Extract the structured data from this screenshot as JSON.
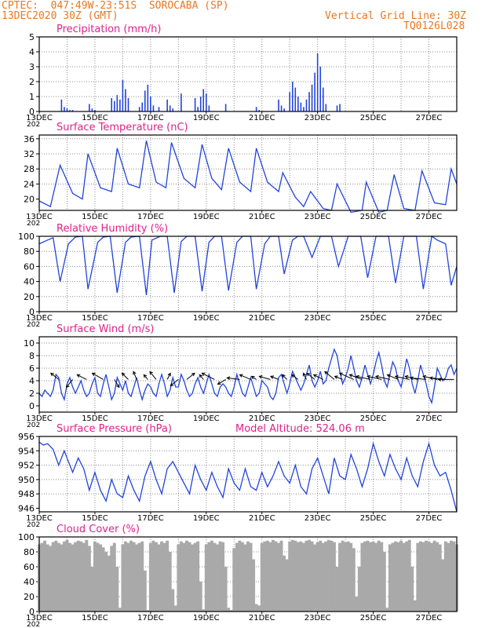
{
  "header": {
    "line1": "CPTEC:  047:49W-23:51S  SOROCABA (SP)",
    "line2": "13DEC2020 30Z (GMT)",
    "grid_note": "Vertical Grid Line: 30Z",
    "code": "TQ0126L028"
  },
  "colors": {
    "header": "#e87722",
    "title": "#e0218a",
    "line": "#2244dd",
    "cloud": "#a9a9a9",
    "grid": "#8c8c8c"
  },
  "time_axis": {
    "start_day": 13,
    "end_day": 28,
    "labeled_days": [
      13,
      15,
      17,
      19,
      21,
      23,
      25,
      27
    ],
    "labels": [
      "13DEC",
      "15DEC",
      "17DEC",
      "19DEC",
      "21DEC",
      "23DEC",
      "25DEC",
      "27DEC"
    ],
    "year_stub": "202"
  },
  "chart_data": [
    {
      "id": "precip",
      "type": "bar",
      "title": "Precipitation (mm/h)",
      "ylim": [
        0,
        5
      ],
      "yticks": [
        0,
        1,
        2,
        3,
        4,
        5
      ],
      "x_units": "day of December",
      "x": [
        13.8,
        13.9,
        14.0,
        14.1,
        14.2,
        14.8,
        14.9,
        15.0,
        15.6,
        15.7,
        15.8,
        15.9,
        16.0,
        16.1,
        16.2,
        16.6,
        16.7,
        16.8,
        16.9,
        17.0,
        17.1,
        17.3,
        17.6,
        17.7,
        17.8,
        18.1,
        18.6,
        18.7,
        18.8,
        18.9,
        19.0,
        19.1,
        19.7,
        20.8,
        20.9,
        21.6,
        21.7,
        21.8,
        22.0,
        22.1,
        22.2,
        22.3,
        22.4,
        22.5,
        22.6,
        22.7,
        22.8,
        22.9,
        23.0,
        23.1,
        23.2,
        23.3,
        23.7,
        23.8
      ],
      "values": [
        0.8,
        0.3,
        0.2,
        0.1,
        0.1,
        0.5,
        0.2,
        0.1,
        0.9,
        0.7,
        1.1,
        0.8,
        2.1,
        1.5,
        0.9,
        0.3,
        0.6,
        1.4,
        1.8,
        1.0,
        0.4,
        0.3,
        0.8,
        0.4,
        0.2,
        1.2,
        0.9,
        0.3,
        1.0,
        1.5,
        1.2,
        0.4,
        0.5,
        0.3,
        0.1,
        0.8,
        0.4,
        0.2,
        1.3,
        2.0,
        1.6,
        1.0,
        0.6,
        0.3,
        0.8,
        1.3,
        1.8,
        2.6,
        3.9,
        3.0,
        1.6,
        0.5,
        0.4,
        0.5
      ]
    },
    {
      "id": "temp",
      "type": "line",
      "title": "Surface Temperature (nC)",
      "ylim": [
        17,
        37
      ],
      "yticks": [
        20,
        24,
        28,
        32,
        36
      ],
      "x_units": "day of December",
      "x": [
        13.0,
        13.4,
        13.75,
        14.2,
        14.55,
        14.75,
        15.2,
        15.6,
        15.8,
        16.2,
        16.6,
        16.85,
        17.2,
        17.55,
        17.75,
        18.2,
        18.6,
        18.85,
        19.2,
        19.55,
        19.8,
        20.2,
        20.6,
        20.8,
        21.2,
        21.6,
        21.75,
        22.2,
        22.5,
        22.75,
        23.2,
        23.5,
        23.7,
        24.2,
        24.6,
        24.75,
        25.2,
        25.5,
        25.75,
        26.1,
        26.5,
        26.75,
        27.2,
        27.6,
        27.8,
        28.0
      ],
      "values": [
        19.5,
        18.0,
        29.0,
        21.5,
        20.0,
        32.0,
        23.0,
        22.0,
        33.5,
        24.0,
        23.0,
        35.5,
        24.5,
        23.0,
        35.0,
        25.5,
        23.0,
        34.5,
        25.5,
        22.5,
        33.5,
        24.5,
        22.0,
        33.5,
        24.5,
        22.0,
        27.0,
        20.5,
        18.0,
        22.0,
        17.5,
        17.0,
        24.0,
        16.5,
        17.0,
        24.5,
        16.5,
        17.0,
        26.5,
        17.5,
        17.0,
        27.5,
        19.0,
        18.5,
        28.0,
        24.0
      ]
    },
    {
      "id": "rh",
      "type": "line",
      "title": "Relative Humidity (%)",
      "ylim": [
        0,
        100
      ],
      "yticks": [
        0,
        20,
        40,
        60,
        80,
        100
      ],
      "x_units": "day of December",
      "x": [
        13.0,
        13.3,
        13.5,
        13.75,
        14.05,
        14.3,
        14.55,
        14.75,
        15.1,
        15.3,
        15.55,
        15.8,
        16.1,
        16.3,
        16.6,
        16.85,
        17.05,
        17.35,
        17.6,
        17.85,
        18.1,
        18.3,
        18.6,
        18.85,
        19.1,
        19.3,
        19.55,
        19.8,
        20.1,
        20.3,
        20.6,
        20.8,
        21.1,
        21.3,
        21.6,
        21.8,
        22.1,
        22.3,
        22.5,
        22.8,
        23.1,
        23.3,
        23.5,
        23.75,
        24.1,
        24.3,
        24.55,
        24.8,
        25.1,
        25.3,
        25.55,
        25.8,
        26.1,
        26.3,
        26.55,
        26.8,
        27.1,
        27.3,
        27.6,
        27.8,
        28.0
      ],
      "values": [
        90,
        95,
        98,
        40,
        90,
        99,
        100,
        30,
        92,
        99,
        100,
        25,
        92,
        99,
        100,
        22,
        95,
        100,
        100,
        25,
        93,
        100,
        100,
        27,
        92,
        100,
        100,
        28,
        92,
        100,
        100,
        30,
        90,
        100,
        100,
        50,
        95,
        100,
        100,
        72,
        100,
        100,
        100,
        60,
        100,
        100,
        100,
        45,
        100,
        100,
        100,
        38,
        100,
        100,
        100,
        30,
        100,
        95,
        90,
        35,
        60
      ]
    },
    {
      "id": "wind",
      "type": "line",
      "title": "Surface Wind (m/s)",
      "ylim": [
        -1,
        11
      ],
      "yticks": [
        0,
        2,
        4,
        6,
        8,
        10
      ],
      "x_units": "day of December",
      "x": [
        13.0,
        13.1,
        13.2,
        13.3,
        13.4,
        13.5,
        13.6,
        13.7,
        13.8,
        13.9,
        14.0,
        14.1,
        14.2,
        14.3,
        14.4,
        14.5,
        14.6,
        14.7,
        14.8,
        14.9,
        15.0,
        15.1,
        15.2,
        15.3,
        15.4,
        15.5,
        15.6,
        15.7,
        15.8,
        15.9,
        16.0,
        16.1,
        16.2,
        16.3,
        16.4,
        16.5,
        16.6,
        16.7,
        16.8,
        16.9,
        17.0,
        17.1,
        17.2,
        17.3,
        17.4,
        17.5,
        17.6,
        17.7,
        17.8,
        17.9,
        18.0,
        18.1,
        18.2,
        18.3,
        18.4,
        18.5,
        18.6,
        18.7,
        18.8,
        18.9,
        19.0,
        19.1,
        19.2,
        19.3,
        19.4,
        19.5,
        19.6,
        19.7,
        19.8,
        19.9,
        20.0,
        20.1,
        20.2,
        20.3,
        20.4,
        20.5,
        20.6,
        20.7,
        20.8,
        20.9,
        21.0,
        21.1,
        21.2,
        21.3,
        21.4,
        21.5,
        21.6,
        21.7,
        21.8,
        21.9,
        22.0,
        22.1,
        22.2,
        22.3,
        22.4,
        22.5,
        22.6,
        22.7,
        22.8,
        22.9,
        23.0,
        23.1,
        23.2,
        23.3,
        23.4,
        23.5,
        23.6,
        23.7,
        23.8,
        23.9,
        24.0,
        24.1,
        24.2,
        24.3,
        24.4,
        24.5,
        24.6,
        24.7,
        24.8,
        24.9,
        25.0,
        25.1,
        25.2,
        25.3,
        25.4,
        25.5,
        25.6,
        25.7,
        25.8,
        25.9,
        26.0,
        26.1,
        26.2,
        26.3,
        26.4,
        26.5,
        26.6,
        26.7,
        26.8,
        26.9,
        27.0,
        27.1,
        27.2,
        27.3,
        27.4,
        27.5,
        27.6,
        27.7,
        27.8,
        27.9,
        28.0
      ],
      "values": [
        2.0,
        1.5,
        2.5,
        2.0,
        1.5,
        2.5,
        5.0,
        4.5,
        2.0,
        1.0,
        3.5,
        4.5,
        3.0,
        2.0,
        3.0,
        4.0,
        2.5,
        1.5,
        2.0,
        3.5,
        4.5,
        2.0,
        1.5,
        3.5,
        5.0,
        3.0,
        1.0,
        2.0,
        4.5,
        3.5,
        2.5,
        4.0,
        2.0,
        1.5,
        3.0,
        4.5,
        2.5,
        1.0,
        2.5,
        3.5,
        3.0,
        2.0,
        1.5,
        3.5,
        5.0,
        3.5,
        1.5,
        2.5,
        4.5,
        3.0,
        3.0,
        5.0,
        4.0,
        2.5,
        1.5,
        2.0,
        3.5,
        4.5,
        3.0,
        2.0,
        3.5,
        5.0,
        3.5,
        2.0,
        1.5,
        3.0,
        3.5,
        3.0,
        2.0,
        1.5,
        3.0,
        5.0,
        3.5,
        2.0,
        1.5,
        3.0,
        4.5,
        3.0,
        1.5,
        2.0,
        4.0,
        3.5,
        3.0,
        1.5,
        1.0,
        2.0,
        4.5,
        5.0,
        3.5,
        2.0,
        3.5,
        5.5,
        4.5,
        3.5,
        2.5,
        3.5,
        5.0,
        6.5,
        4.0,
        3.0,
        4.0,
        5.5,
        3.5,
        4.0,
        6.0,
        7.5,
        9.0,
        8.0,
        5.5,
        3.5,
        4.5,
        6.0,
        8.0,
        6.0,
        4.0,
        3.0,
        4.5,
        6.5,
        5.0,
        3.5,
        5.0,
        7.0,
        8.5,
        6.5,
        4.0,
        3.0,
        5.0,
        7.0,
        6.0,
        4.0,
        3.0,
        5.0,
        7.5,
        6.0,
        3.5,
        2.0,
        4.0,
        6.5,
        5.0,
        3.5,
        1.5,
        0.5,
        3.0,
        6.0,
        5.0,
        4.0,
        4.5,
        6.0,
        6.5,
        5.0,
        6.0
      ],
      "vectors": {
        "x": [
          13.7,
          14.2,
          14.7,
          15.3,
          15.7,
          16.2,
          16.5,
          16.9,
          17.2,
          17.6,
          18.0,
          18.3,
          18.9,
          19.3,
          19.7,
          20.2,
          20.6,
          20.8,
          21.3,
          21.6,
          21.9,
          22.3,
          22.6,
          22.9,
          23.2,
          23.6,
          23.9,
          24.3,
          24.6,
          24.9,
          25.3,
          25.6,
          25.9,
          26.3,
          26.6,
          26.9,
          27.3,
          27.6,
          27.9
        ],
        "u": [
          -1.0,
          -0.8,
          -1.2,
          -1.4,
          0.6,
          -0.8,
          -0.4,
          -0.5,
          -0.8,
          0.4,
          -1.0,
          1.0,
          -0.5,
          -1.6,
          -1.0,
          -1.6,
          -1.4,
          -0.6,
          -1.4,
          -1.0,
          -0.6,
          -0.8,
          -0.4,
          -1.0,
          -1.2,
          -1.2,
          -1.0,
          -1.8,
          -1.6,
          -1.8,
          -1.8,
          -1.8,
          -1.4,
          -1.8,
          -1.6,
          -2.0,
          -1.8,
          -2.0,
          -2.0
        ],
        "v": [
          0.8,
          -1.0,
          0.6,
          0.8,
          -1.0,
          0.8,
          1.0,
          0.6,
          1.0,
          0.8,
          -0.8,
          0.8,
          0.6,
          0.8,
          -0.6,
          0.2,
          0.6,
          0.4,
          0.4,
          0.4,
          0.6,
          0.6,
          0.8,
          0.8,
          0.6,
          1.0,
          0.4,
          0.8,
          0.6,
          0.4,
          0.4,
          0.4,
          0.6,
          0.4,
          0.4,
          0.2,
          0.4,
          0.2,
          0.0
        ]
      }
    },
    {
      "id": "pressure",
      "type": "line",
      "title": "Surface Pressure (hPa)",
      "annotation": "Model Altitude: 524.06 m",
      "ylim": [
        945.5,
        956
      ],
      "yticks": [
        946,
        948,
        950,
        952,
        954,
        956
      ],
      "x_units": "day of December",
      "x": [
        13.0,
        13.15,
        13.3,
        13.5,
        13.7,
        13.9,
        14.05,
        14.2,
        14.4,
        14.6,
        14.8,
        15.0,
        15.2,
        15.4,
        15.6,
        15.8,
        16.0,
        16.2,
        16.4,
        16.6,
        16.8,
        17.0,
        17.2,
        17.4,
        17.6,
        17.8,
        18.0,
        18.2,
        18.4,
        18.6,
        18.8,
        19.0,
        19.2,
        19.4,
        19.6,
        19.8,
        20.0,
        20.2,
        20.4,
        20.6,
        20.8,
        21.0,
        21.2,
        21.4,
        21.6,
        21.8,
        22.0,
        22.2,
        22.4,
        22.6,
        22.8,
        23.0,
        23.2,
        23.4,
        23.6,
        23.8,
        24.0,
        24.2,
        24.4,
        24.6,
        24.8,
        25.0,
        25.2,
        25.4,
        25.6,
        25.8,
        26.0,
        26.2,
        26.4,
        26.6,
        26.8,
        27.0,
        27.2,
        27.4,
        27.6,
        27.8,
        28.0
      ],
      "values": [
        955.2,
        954.8,
        955.0,
        954.2,
        952.0,
        954.0,
        952.5,
        951.0,
        953.0,
        951.5,
        948.5,
        951.0,
        948.5,
        947.0,
        950.0,
        948.0,
        947.5,
        950.5,
        948.5,
        947.0,
        950.5,
        952.5,
        950.0,
        948.0,
        951.5,
        952.5,
        951.0,
        949.5,
        948.0,
        952.0,
        950.0,
        948.5,
        951.0,
        949.0,
        947.5,
        951.5,
        949.5,
        948.5,
        951.5,
        949.0,
        948.5,
        951.0,
        949.0,
        950.5,
        952.5,
        950.5,
        949.5,
        952.0,
        949.0,
        948.0,
        951.5,
        953.0,
        950.5,
        948.0,
        953.0,
        950.5,
        950.0,
        953.5,
        951.5,
        949.0,
        951.5,
        955.0,
        952.5,
        950.5,
        953.5,
        951.5,
        950.0,
        953.0,
        950.5,
        949.0,
        952.5,
        955.0,
        952.0,
        950.5,
        951.0,
        948.5,
        945.5
      ]
    },
    {
      "id": "cloud",
      "type": "area",
      "title": "Cloud Cover (%)",
      "ylim": [
        0,
        100
      ],
      "yticks": [
        0,
        20,
        40,
        60,
        80,
        100
      ],
      "x_units": "day of December",
      "x": [
        13.0,
        13.1,
        13.2,
        13.3,
        13.4,
        13.5,
        13.6,
        13.7,
        13.8,
        13.9,
        14.0,
        14.1,
        14.2,
        14.3,
        14.4,
        14.5,
        14.6,
        14.7,
        14.8,
        14.9,
        15.0,
        15.1,
        15.2,
        15.3,
        15.4,
        15.5,
        15.6,
        15.7,
        15.8,
        15.9,
        16.0,
        16.1,
        16.2,
        16.3,
        16.4,
        16.5,
        16.6,
        16.7,
        16.8,
        16.9,
        17.0,
        17.1,
        17.2,
        17.3,
        17.4,
        17.5,
        17.6,
        17.7,
        17.8,
        17.9,
        18.0,
        18.1,
        18.2,
        18.3,
        18.4,
        18.5,
        18.6,
        18.7,
        18.8,
        18.9,
        19.0,
        19.1,
        19.2,
        19.3,
        19.4,
        19.5,
        19.6,
        19.7,
        19.8,
        19.9,
        20.0,
        20.1,
        20.2,
        20.3,
        20.4,
        20.5,
        20.6,
        20.7,
        20.8,
        20.9,
        21.0,
        21.1,
        21.2,
        21.3,
        21.4,
        21.5,
        21.6,
        21.7,
        21.8,
        21.9,
        22.0,
        22.1,
        22.2,
        22.3,
        22.4,
        22.5,
        22.6,
        22.7,
        22.8,
        22.9,
        23.0,
        23.1,
        23.2,
        23.3,
        23.4,
        23.5,
        23.6,
        23.7,
        23.8,
        23.9,
        24.0,
        24.1,
        24.2,
        24.3,
        24.4,
        24.5,
        24.6,
        24.7,
        24.8,
        24.9,
        25.0,
        25.1,
        25.2,
        25.3,
        25.4,
        25.5,
        25.6,
        25.7,
        25.8,
        25.9,
        26.0,
        26.1,
        26.2,
        26.3,
        26.4,
        26.5,
        26.6,
        26.7,
        26.8,
        26.9,
        27.0,
        27.1,
        27.2,
        27.3,
        27.4,
        27.5,
        27.6,
        27.7,
        27.8,
        27.9,
        28.0
      ],
      "values": [
        90,
        92,
        95,
        90,
        88,
        93,
        95,
        92,
        90,
        94,
        96,
        92,
        90,
        93,
        95,
        94,
        92,
        96,
        88,
        60,
        94,
        92,
        90,
        86,
        80,
        75,
        88,
        92,
        60,
        5,
        90,
        94,
        92,
        95,
        93,
        90,
        92,
        94,
        55,
        2,
        92,
        95,
        93,
        90,
        94,
        92,
        95,
        80,
        30,
        8,
        90,
        94,
        92,
        95,
        93,
        90,
        92,
        94,
        40,
        3,
        90,
        93,
        95,
        92,
        90,
        94,
        93,
        60,
        5,
        2,
        85,
        92,
        95,
        93,
        90,
        94,
        92,
        70,
        10,
        8,
        92,
        94,
        95,
        93,
        96,
        94,
        92,
        95,
        75,
        70,
        94,
        96,
        95,
        93,
        94,
        92,
        95,
        96,
        94,
        90,
        93,
        95,
        92,
        94,
        96,
        95,
        93,
        60,
        92,
        95,
        93,
        94,
        92,
        85,
        20,
        60,
        92,
        94,
        95,
        93,
        94,
        92,
        95,
        93,
        80,
        5,
        90,
        92,
        94,
        93,
        95,
        92,
        94,
        96,
        60,
        15,
        92,
        94,
        93,
        95,
        94,
        92,
        95,
        93,
        90,
        70,
        94,
        92,
        95,
        94,
        90
      ]
    }
  ]
}
